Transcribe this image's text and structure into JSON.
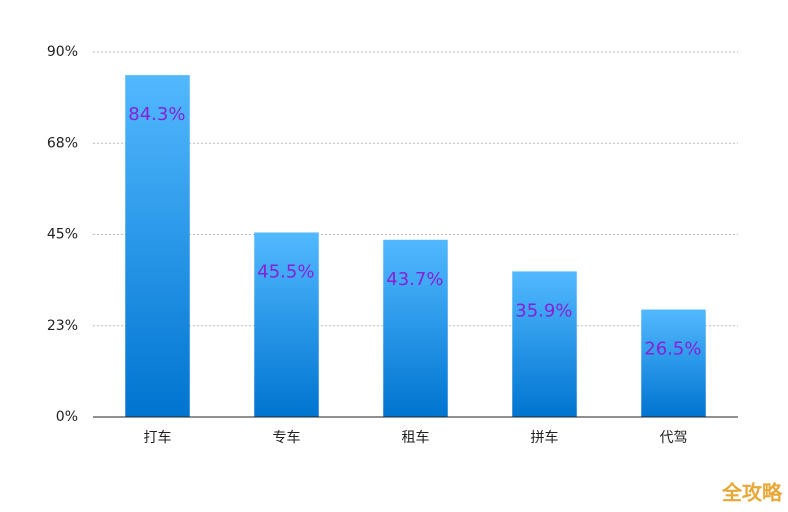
{
  "chart_data": {
    "type": "bar",
    "categories": [
      "打车",
      "专车",
      "租车",
      "拼车",
      "代驾"
    ],
    "values": [
      84.3,
      45.5,
      43.7,
      35.9,
      26.5
    ],
    "value_labels": [
      "84.3%",
      "45.5%",
      "43.7%",
      "35.9%",
      "26.5%"
    ],
    "color": "#0a84dc",
    "ylim": [
      0,
      90
    ],
    "yticks": [
      {
        "value": 0,
        "label": "0%"
      },
      {
        "value": 22.5,
        "label": "23%"
      },
      {
        "value": 45,
        "label": "45%"
      },
      {
        "value": 67.5,
        "label": "68%"
      },
      {
        "value": 90,
        "label": "90%"
      }
    ],
    "grid": true
  },
  "watermark": "全攻略"
}
